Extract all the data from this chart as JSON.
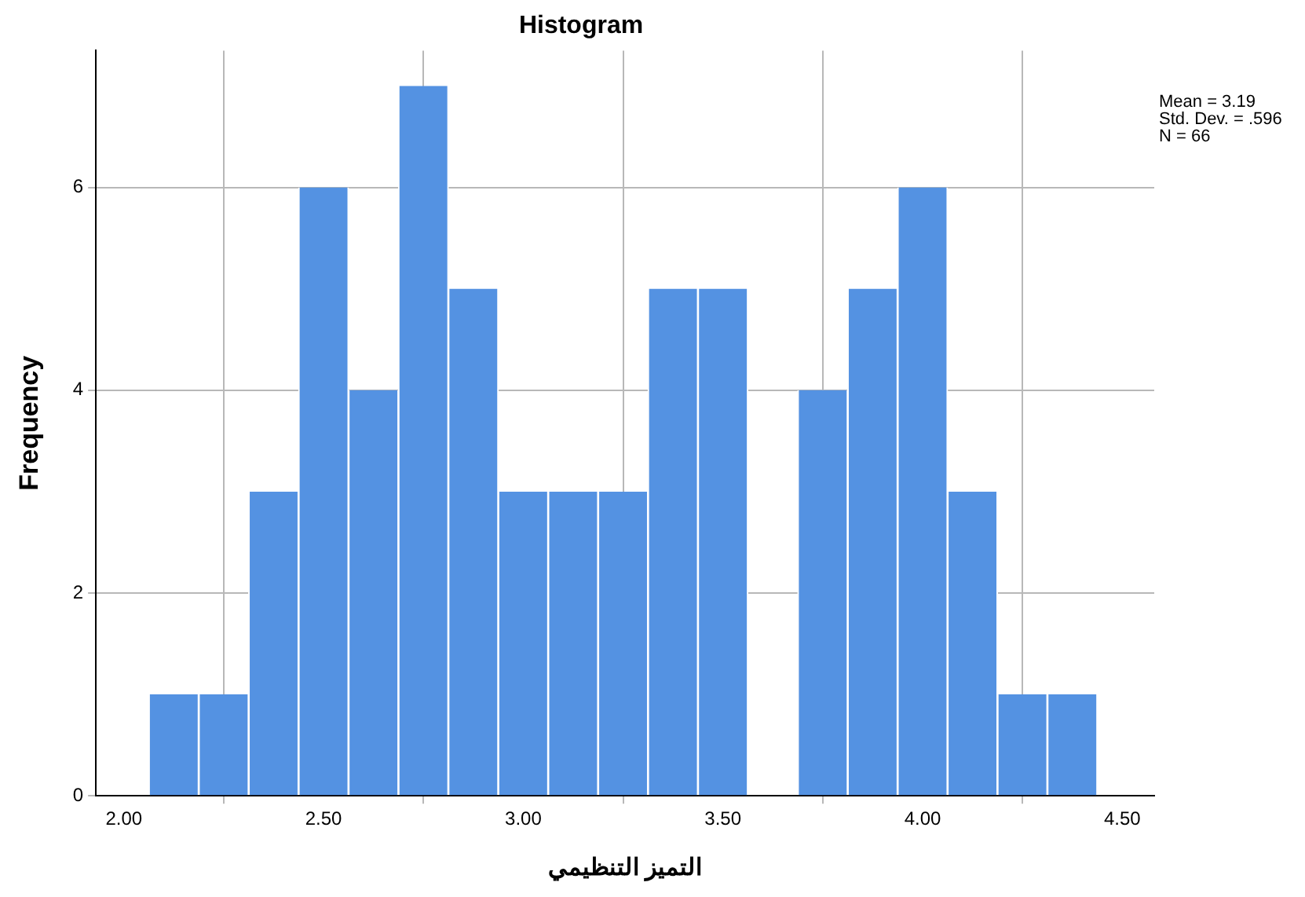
{
  "chart_data": {
    "type": "histogram",
    "title": "Histogram",
    "xlabel": "التميز التنظيمي",
    "ylabel": "Frequency",
    "bins": [
      2.0625,
      2.1875,
      2.3125,
      2.4375,
      2.5625,
      2.6875,
      2.8125,
      2.9375,
      3.0625,
      3.1875,
      3.3125,
      3.4375,
      3.5625,
      3.6875,
      3.8125,
      3.9375,
      4.0625,
      4.1875,
      4.3125,
      4.4375
    ],
    "values": [
      1,
      1,
      3,
      6,
      4,
      7,
      5,
      3,
      3,
      3,
      5,
      5,
      0,
      4,
      5,
      6,
      3,
      1,
      1
    ],
    "color": "#5492e2",
    "xlim": [
      1.93,
      4.58
    ],
    "xticks": [
      {
        "value": 2,
        "label": "2.00"
      },
      {
        "value": 2.5,
        "label": "2.50"
      },
      {
        "value": 3,
        "label": "3.00"
      },
      {
        "value": 3.5,
        "label": "3.50"
      },
      {
        "value": 4,
        "label": "4.00"
      },
      {
        "value": 4.5,
        "label": "4.50"
      }
    ],
    "ylim": [
      0,
      7.35
    ],
    "yticks": [
      0,
      2,
      4,
      6
    ],
    "grid": true,
    "annotations": [
      "Mean = 3.19\nStd. Dev. = .596\nN = 66"
    ]
  }
}
